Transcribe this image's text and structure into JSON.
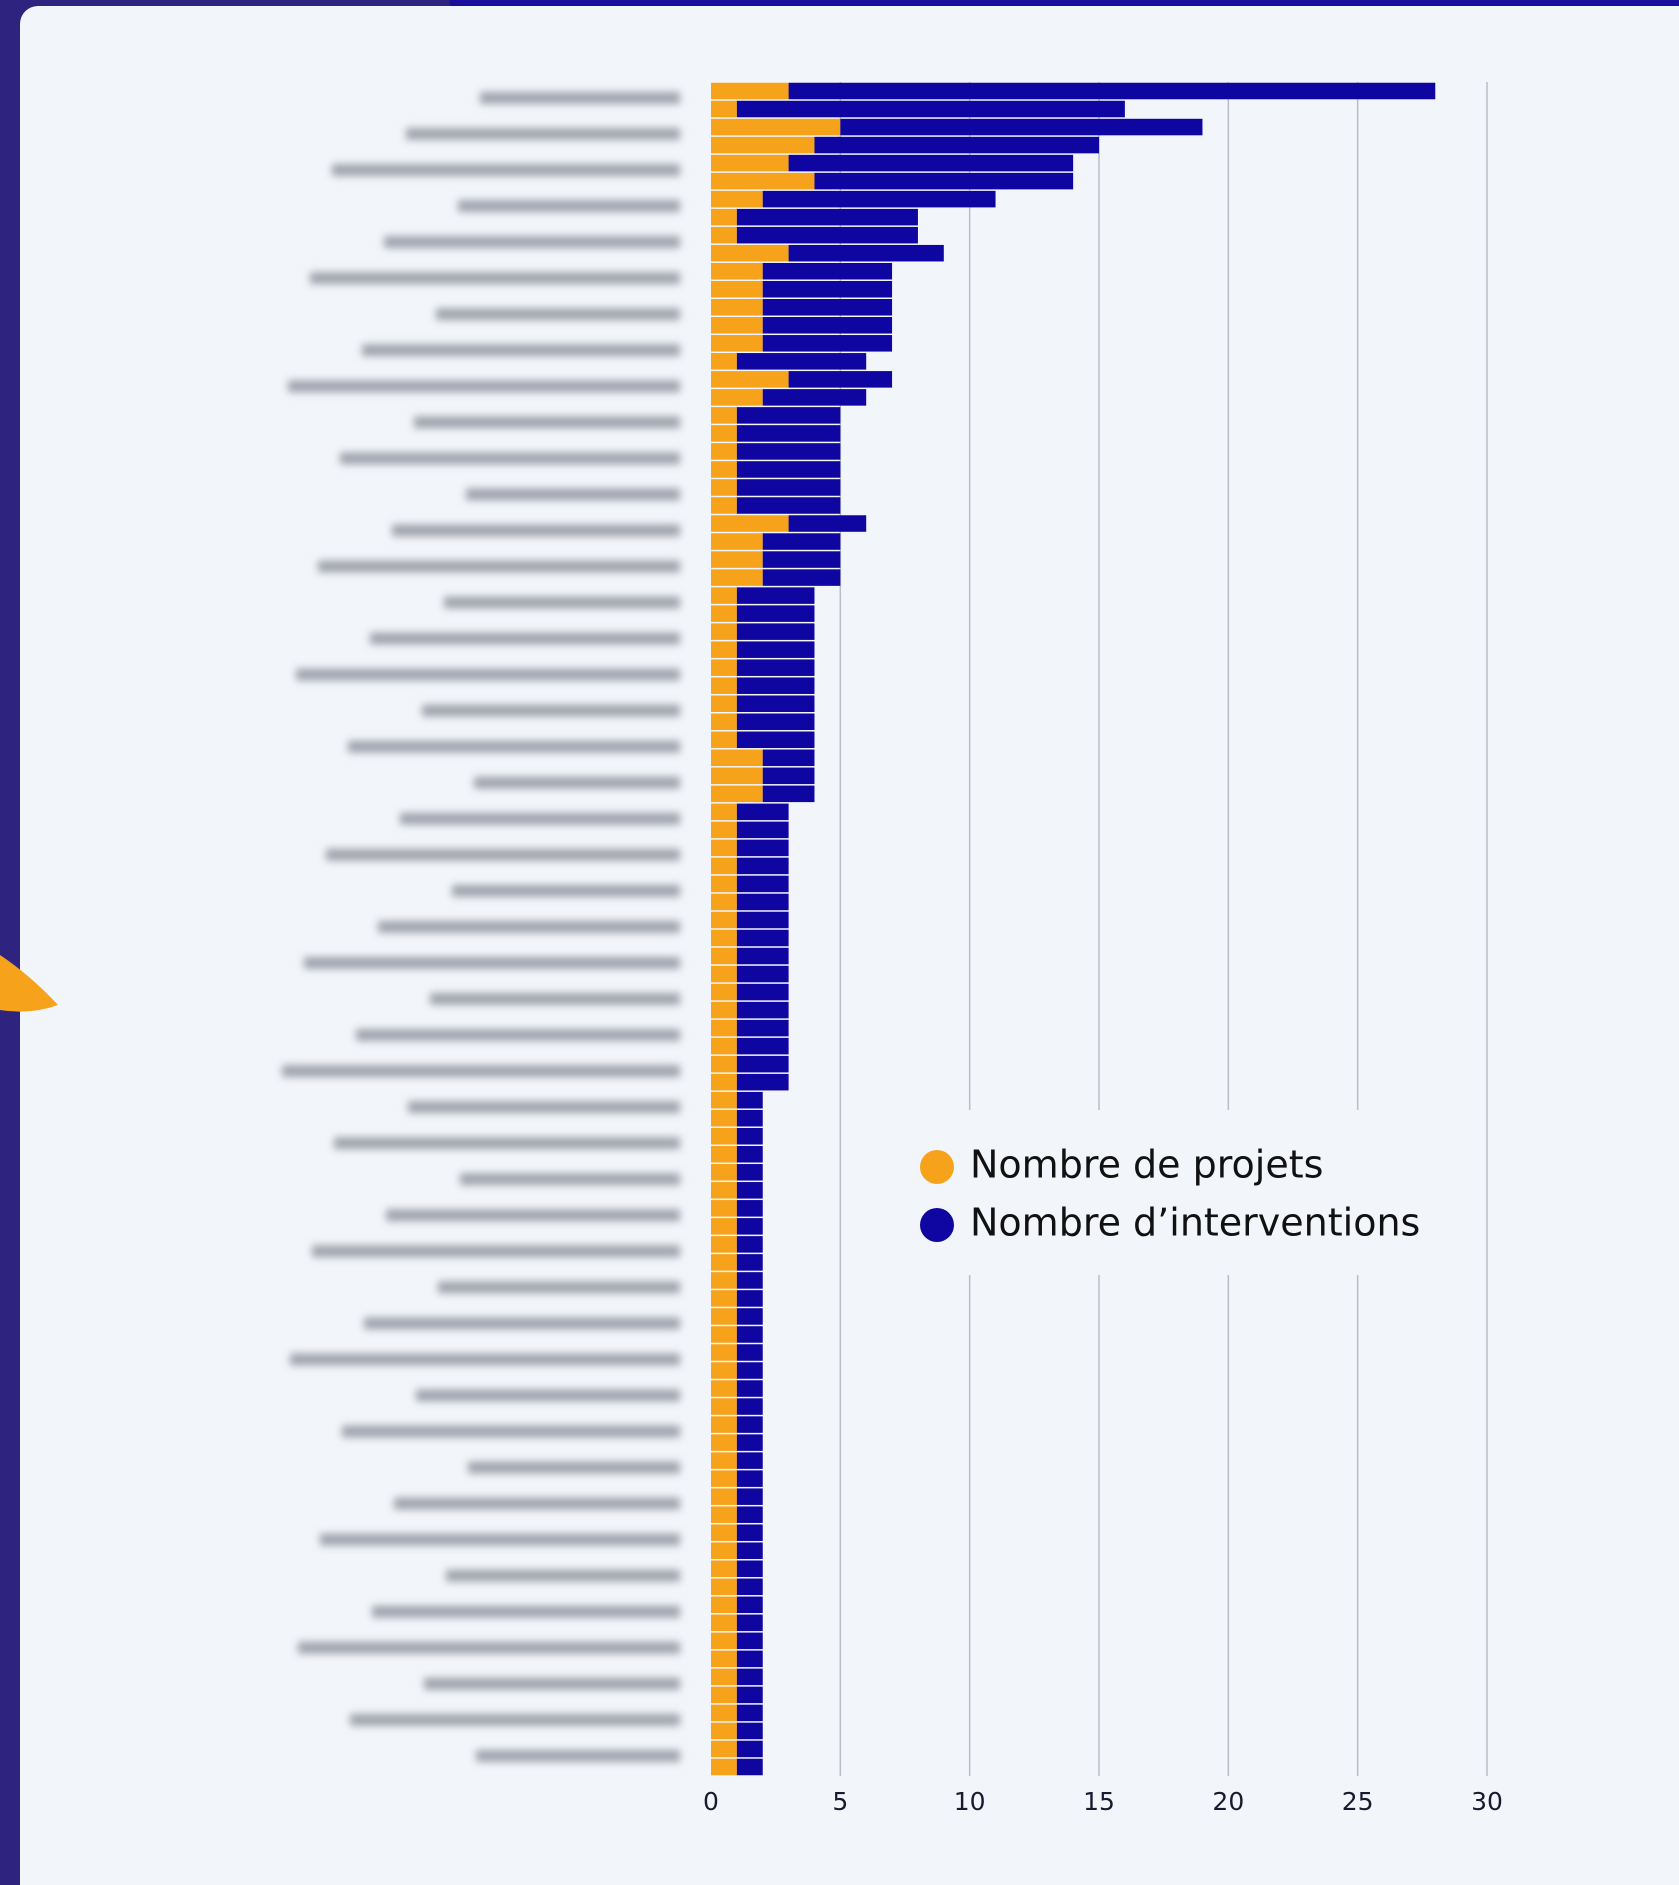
{
  "chart_data": {
    "type": "stacked-barh",
    "categories": [
      null,
      null,
      null,
      null,
      null,
      null,
      null,
      null,
      null,
      null,
      null,
      null,
      null,
      null,
      null,
      null,
      null,
      null,
      null,
      null,
      null,
      null,
      null,
      null,
      null,
      null,
      null,
      null,
      null,
      null,
      null,
      null,
      null,
      null,
      null,
      null,
      null,
      null,
      null,
      null,
      null,
      null,
      null,
      null,
      null,
      null,
      null,
      null,
      null,
      null,
      null,
      null,
      null,
      null,
      null,
      null,
      null,
      null,
      null,
      null,
      null,
      null,
      null,
      null,
      null,
      null,
      null,
      null,
      null,
      null,
      null,
      null,
      null,
      null,
      null,
      null,
      null,
      null,
      null,
      null,
      null,
      null,
      null,
      null,
      null,
      null,
      null,
      null,
      null,
      null,
      null,
      null,
      null,
      null
    ],
    "series": [
      {
        "name": "Nombre de projets",
        "color": "#f7a21b",
        "values": [
          3,
          1,
          5,
          4,
          3,
          4,
          2,
          1,
          1,
          3,
          2,
          2,
          2,
          2,
          2,
          1,
          3,
          2,
          1,
          1,
          1,
          1,
          1,
          1,
          3,
          2,
          2,
          2,
          1,
          1,
          1,
          1,
          1,
          1,
          1,
          1,
          1,
          2,
          2,
          2,
          1,
          1,
          1,
          1,
          1,
          1,
          1,
          1,
          1,
          1,
          1,
          1,
          1,
          1,
          1,
          1,
          1,
          1,
          1,
          1,
          1,
          1,
          1,
          1,
          1,
          1,
          1,
          1,
          1,
          1,
          1,
          1,
          1,
          1,
          1,
          1,
          1,
          1,
          1,
          1,
          1,
          1,
          1,
          1,
          1,
          1,
          1,
          1,
          1,
          1,
          1,
          1,
          1,
          1
        ]
      },
      {
        "name": "Nombre d’interventions",
        "color": "#0f05a0",
        "values": [
          25,
          15,
          14,
          11,
          11,
          10,
          9,
          7,
          7,
          6,
          5,
          5,
          5,
          5,
          5,
          5,
          4,
          4,
          4,
          4,
          4,
          4,
          4,
          4,
          3,
          3,
          3,
          3,
          3,
          3,
          3,
          3,
          3,
          3,
          3,
          3,
          3,
          2,
          2,
          2,
          2,
          2,
          2,
          2,
          2,
          2,
          2,
          2,
          2,
          2,
          2,
          2,
          2,
          2,
          2,
          2,
          1,
          1,
          1,
          1,
          1,
          1,
          1,
          1,
          1,
          1,
          1,
          1,
          1,
          1,
          1,
          1,
          1,
          1,
          1,
          1,
          1,
          1,
          1,
          1,
          1,
          1,
          1,
          1,
          1,
          1,
          1,
          1,
          1,
          1,
          1,
          1,
          1,
          1
        ]
      }
    ],
    "xlim": [
      0,
      30
    ],
    "xticks": [
      0,
      5,
      10,
      15,
      20,
      25,
      30
    ],
    "grid": true
  }
}
